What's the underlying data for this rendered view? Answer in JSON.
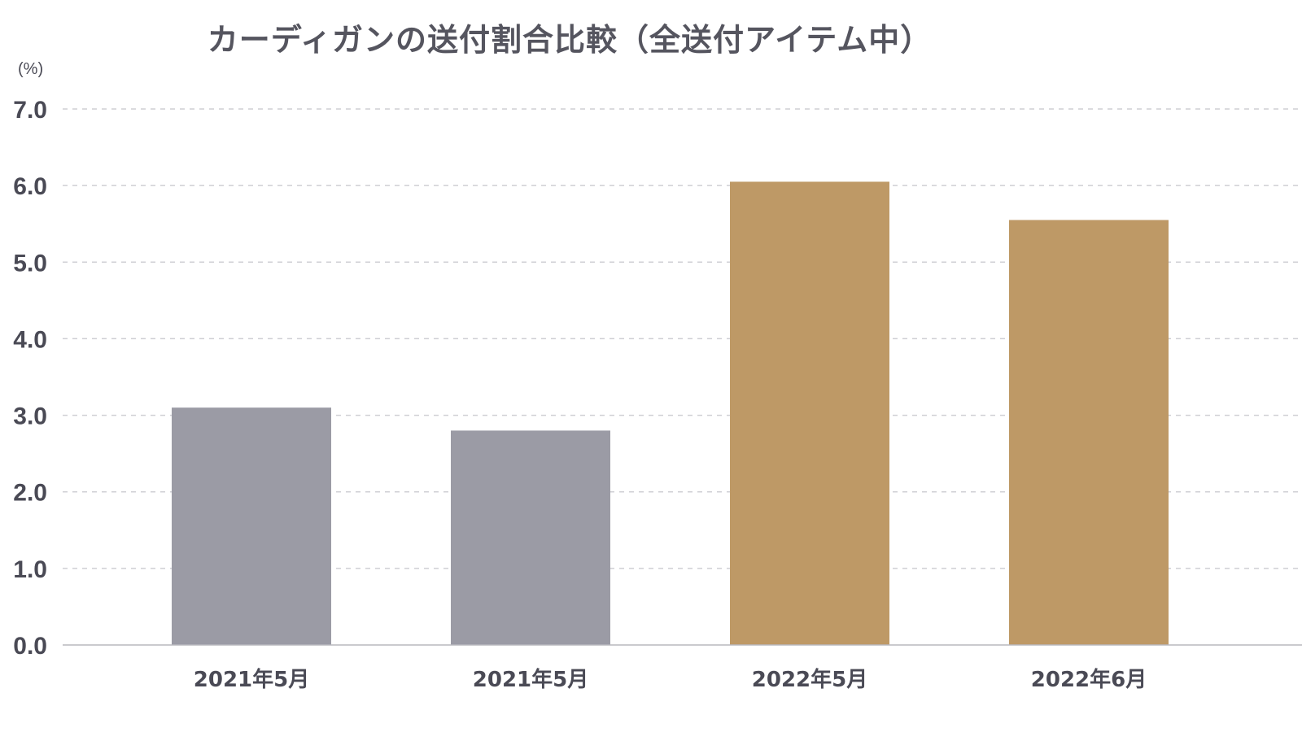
{
  "chart_data": {
    "type": "bar",
    "title": "カーディガンの送付割合比較（全送付アイテム中）",
    "ylabel": "(%)",
    "categories": [
      "2021年5月",
      "2021年5月",
      "2022年5月",
      "2022年6月"
    ],
    "values": [
      3.1,
      2.8,
      6.05,
      5.55
    ],
    "bar_colors": [
      "#9b9ba5",
      "#9b9ba5",
      "#be9966",
      "#be9966"
    ],
    "ylim": [
      0,
      7
    ],
    "yticks": [
      "0.0",
      "1.0",
      "2.0",
      "3.0",
      "4.0",
      "5.0",
      "6.0",
      "7.0"
    ],
    "grid": true,
    "legend": "none"
  }
}
